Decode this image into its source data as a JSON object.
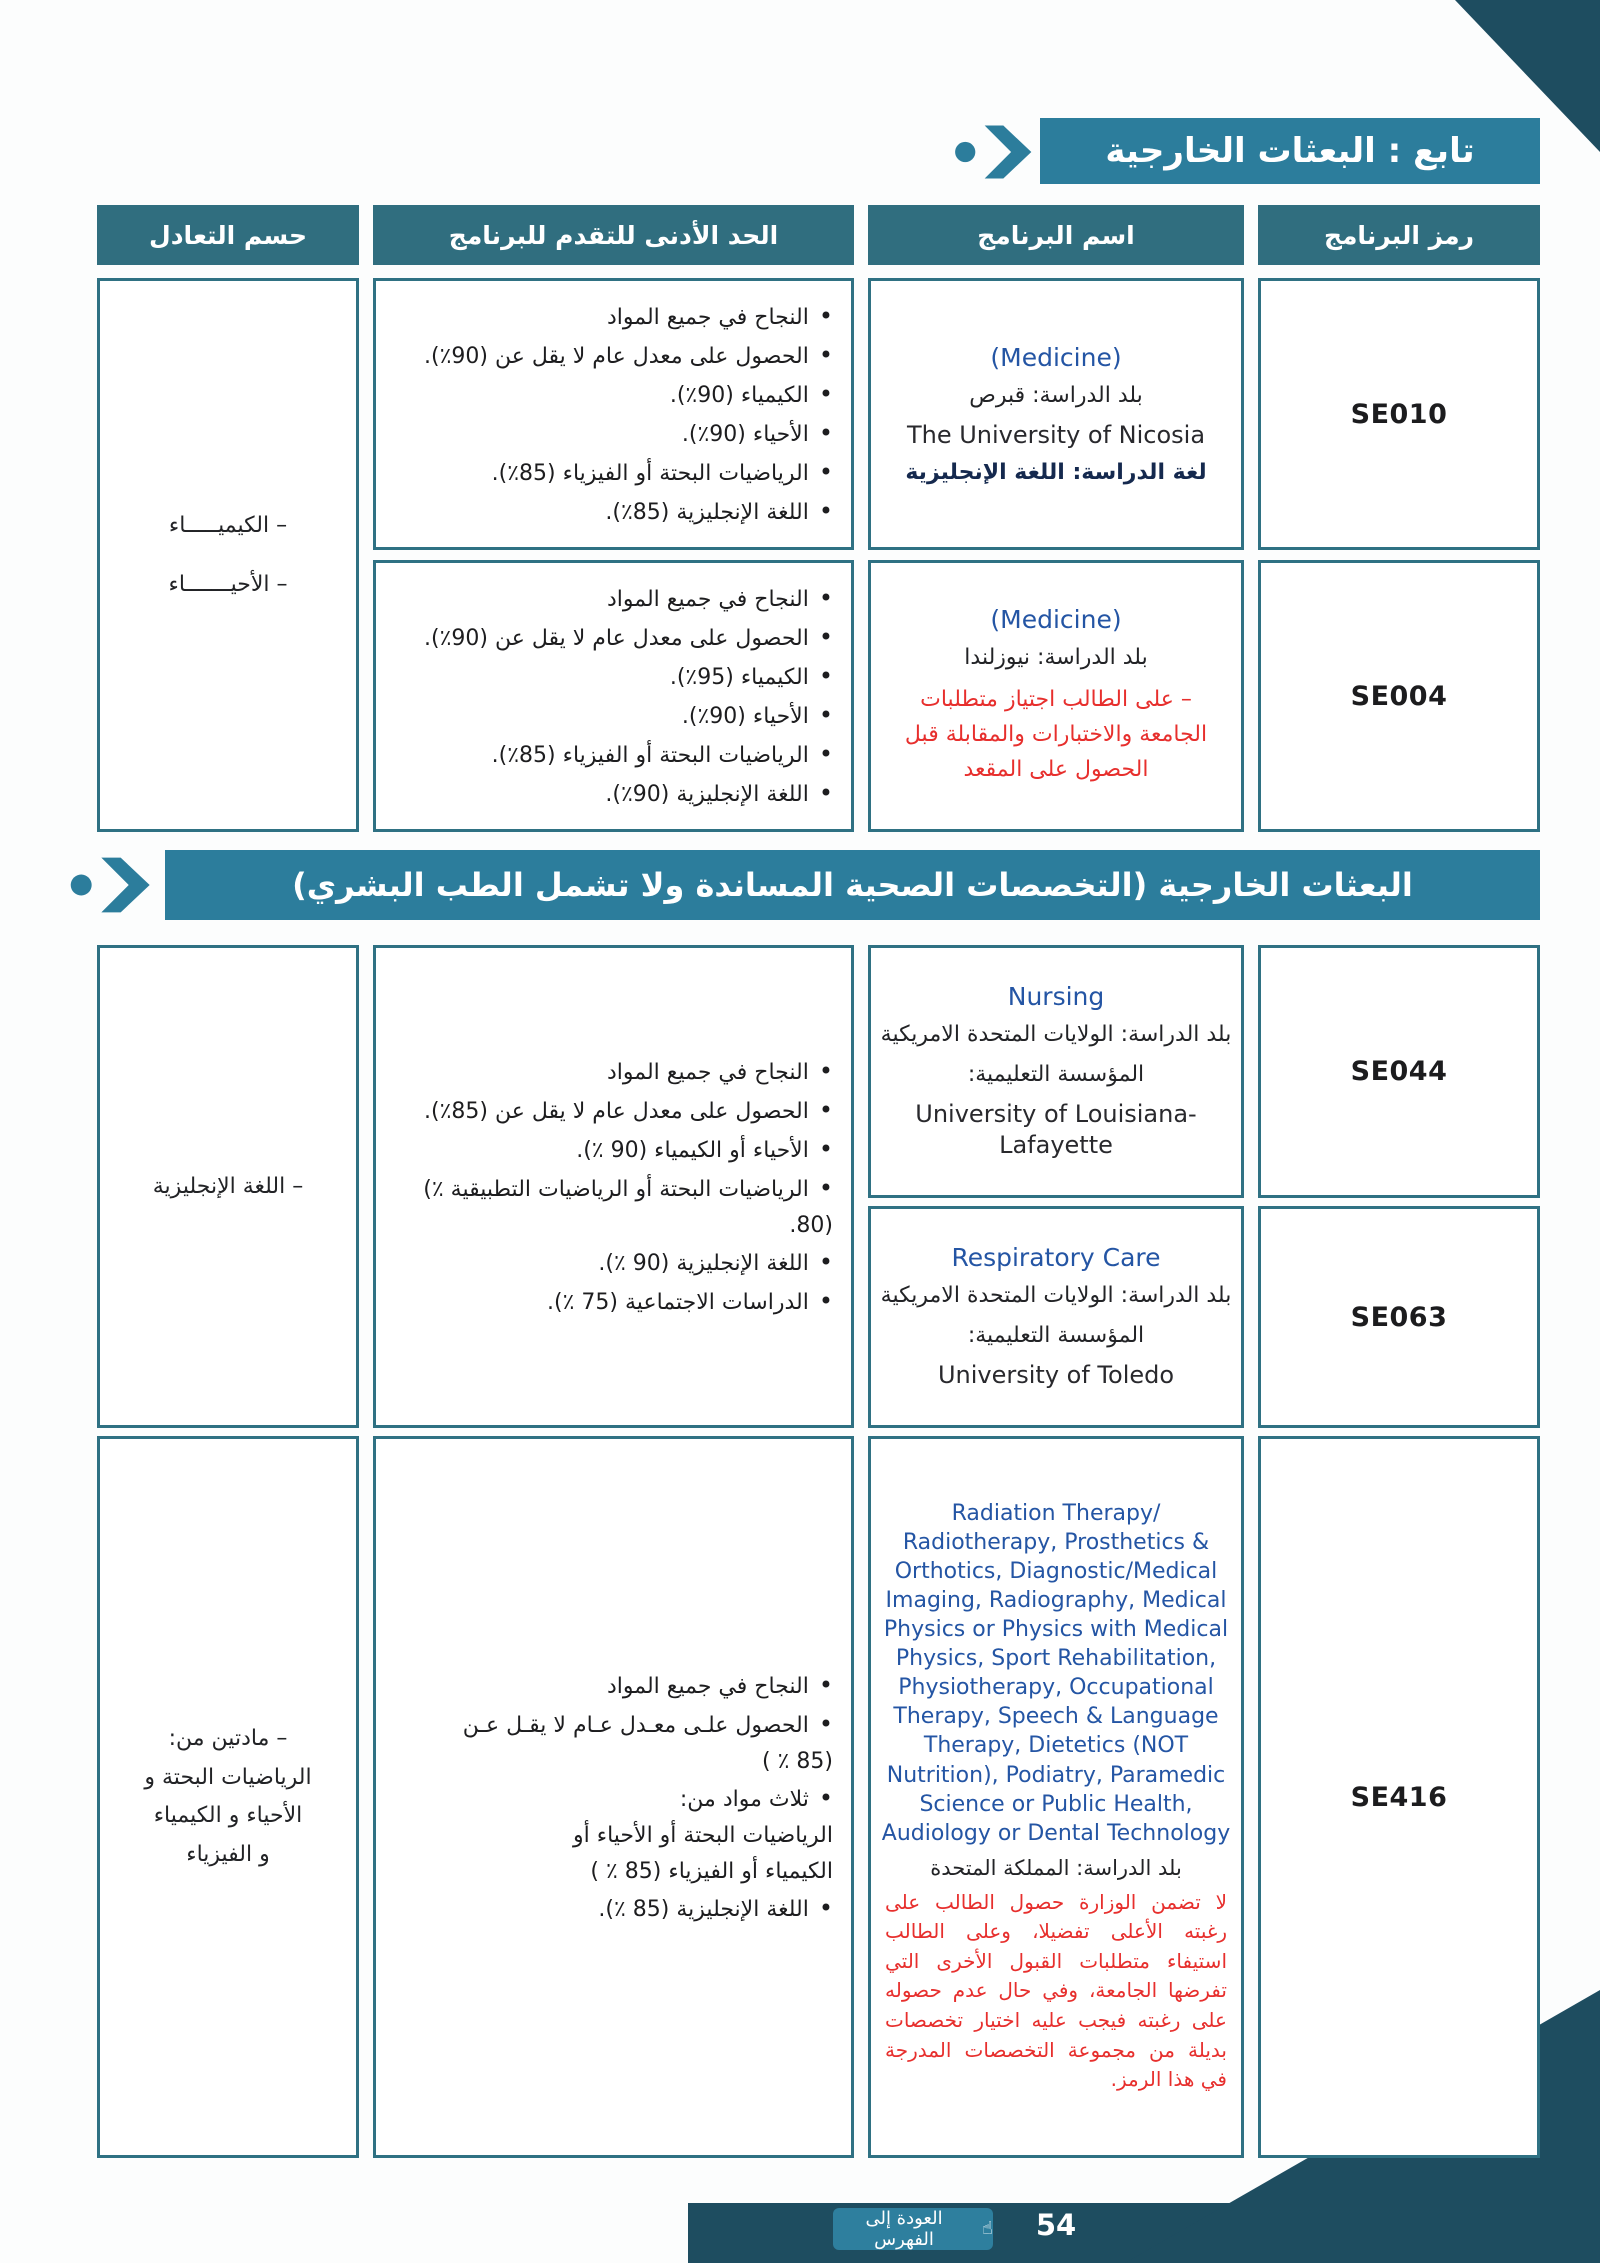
{
  "banners": {
    "continued_title": "تابع : البعثات الخارجية",
    "allied_title": "البعثات الخارجية (التخصصات الصحية المساندة ولا تشمل الطب البشري)"
  },
  "headers": {
    "code": "رمز البرنامج",
    "name": "اسم البرنامج",
    "min_req": "الحد الأدنى للتقدم للبرنامج",
    "deduction": "حسم التعادل"
  },
  "table1": {
    "deduction": "– الكيميـــــاء\n– الأحيـــــــاء",
    "rows": [
      {
        "code": "SE010",
        "program_en": "(Medicine)",
        "country": "بلد الدراسة: قبرص",
        "institution": "The University of Nicosia",
        "language": "لغة الدراسة: اللغة الإنجليزية",
        "requirements": [
          "النجاح في جميع المواد",
          "الحصول على معدل عام لا يقل عن ‭(٪90)‬.",
          "الكيمياء ‭(٪90)‬.",
          "الأحياء ‭(٪90)‬.",
          "الرياضيات البحتة أو الفيزياء ‭(٪85)‬.",
          "اللغة الإنجليزية ‭(٪85)‬."
        ]
      },
      {
        "code": "SE004",
        "program_en": "(Medicine)",
        "country": "بلد الدراسة: نيوزلندا",
        "note": "– على الطالب اجتياز متطلبات\nالجامعة والاختبارات والمقابلة قبل\nالحصول على المقعد",
        "requirements": [
          "النجاح في جميع المواد",
          "الحصول على معدل عام لا يقل عن ‭(٪90)‬.",
          "الكيمياء ‭(٪95)‬.",
          "الأحياء ‭(٪90)‬.",
          "الرياضيات البحتة أو الفيزياء ‭(٪85)‬.",
          "اللغة الإنجليزية ‭(٪90)‬."
        ]
      }
    ]
  },
  "table2": {
    "group1": {
      "deduction": "– اللغة الإنجليزية",
      "requirements": [
        "النجاح في جميع المواد",
        "الحصول على معدل عام لا يقل عن ‭(٪85)‬.",
        "الأحياء أو الكيمياء ‭(٪ 90)‬.",
        "الرياضيات البحتة أو الرياضيات التطبيقية ‭(٪ 80)‬.",
        "اللغة الإنجليزية ‭(٪ 90)‬.",
        "الدراسات الاجتماعية ‭(٪ 75)‬."
      ],
      "rows": [
        {
          "code": "SE044",
          "program_en": "Nursing",
          "country": "بلد الدراسة: الولايات المتحدة الامريكية",
          "institution_label": "المؤسسة التعليمية:",
          "institution": "University of Louisiana-Lafayette"
        },
        {
          "code": "SE063",
          "program_en": "Respiratory Care",
          "country": "بلد الدراسة: الولايات المتحدة الامريكية",
          "institution_label": "المؤسسة التعليمية:",
          "institution": "University of Toledo"
        }
      ]
    },
    "group2": {
      "deduction": "– مادتين من:\nالرياضيات البحتة و\nالأحياء و الكيمياء\nو الفيزياء",
      "requirements": [
        "النجاح في جميع المواد",
        "الحصول علـى معـدل عـام لا يقـل عـن\n‭( ٪ 85)‬",
        "ثلاث مواد من:\nالرياضيات البحتة أو الأحياء أو\nالكيمياء أو الفيزياء ‭( ٪ 85)‬",
        "اللغة الإنجليزية ‭(٪ 85)‬."
      ],
      "row": {
        "code": "SE416",
        "program_en": "Radiation Therapy/ Radiotherapy, Prosthetics & Orthotics, Diagnostic/Medical Imaging, Radiography, Medical Physics or Physics with Medical Physics, Sport Rehabilitation, Physiotherapy, Occupational Therapy, Speech & Language Therapy, Dietetics (NOT Nutrition), Podiatry, Paramedic Science or Public Health, Audiology or Dental Technology",
        "country": "بلد الدراسة: المملكة المتحدة",
        "note": "لا تضمن الوزارة حصول الطالب على رغبته الأعلى تفضيلا، وعلى الطالب استيفاء متطلبات القبول الأخرى التي تفرضها الجامعة، وفي حال عدم حصوله على رغبته فيجب عليه اختيار تخصصات بديلة من مجموعة التخصصات المدرجة في هذا الرمز."
      }
    }
  },
  "footer": {
    "back_label": "العودة إلى الفهرس",
    "back_icon_glyph": "☝",
    "page_number": "54"
  },
  "colors": {
    "banner_teal": "#2c7d9c",
    "header_teal": "#306e7f",
    "border_teal": "#2f7183",
    "corner_dark": "#1e4d60",
    "blue_text": "#2455a4",
    "red_text": "#e72f2d"
  }
}
